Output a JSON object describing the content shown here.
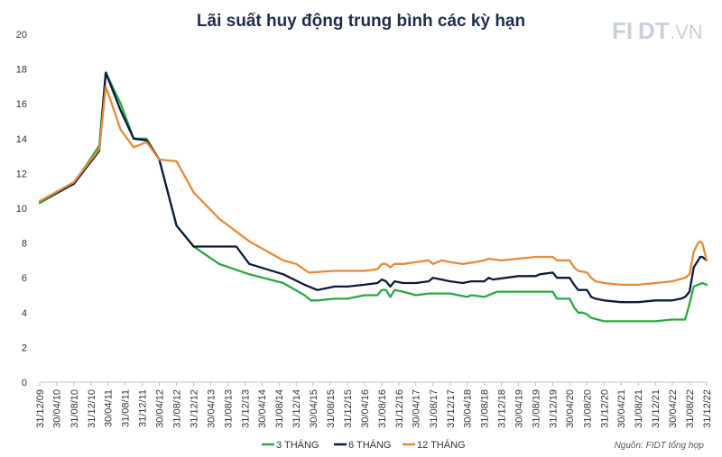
{
  "chart_data": {
    "type": "line",
    "title": "Lãi suất huy động trung bình các kỳ hạn",
    "xlabel": "",
    "ylabel": "",
    "ylim": [
      0,
      20
    ],
    "yticks": [
      0,
      2,
      4,
      6,
      8,
      10,
      12,
      14,
      16,
      18,
      20
    ],
    "xlim": [
      "31/12/09",
      "31/12/22"
    ],
    "xticks": [
      "31/12/09",
      "30/04/10",
      "31/08/10",
      "31/12/10",
      "30/04/11",
      "31/08/11",
      "31/12/11",
      "30/04/12",
      "31/08/12",
      "31/12/12",
      "30/04/13",
      "31/08/13",
      "31/12/13",
      "30/04/14",
      "31/08/14",
      "31/12/14",
      "30/04/15",
      "31/08/15",
      "31/12/15",
      "30/04/16",
      "31/08/16",
      "31/12/16",
      "30/04/17",
      "31/08/17",
      "31/12/17",
      "30/04/18",
      "31/08/18",
      "31/12/18",
      "30/04/19",
      "31/08/19",
      "31/12/19",
      "30/04/20",
      "31/08/20",
      "31/12/20",
      "30/04/21",
      "31/08/21",
      "31/12/21",
      "30/04/22",
      "31/08/22",
      "31/12/22"
    ],
    "grid": false,
    "legend_position": "bottom",
    "series": [
      {
        "name": "3 THÁNG",
        "color": "#2aa843",
        "points": [
          [
            "31/12/09",
            10.3
          ],
          [
            "31/08/10",
            11.4
          ],
          [
            "28/02/11",
            13.6
          ],
          [
            "15/04/11",
            17.8
          ],
          [
            "31/07/11",
            16.0
          ],
          [
            "31/10/11",
            14.0
          ],
          [
            "31/01/12",
            14.0
          ],
          [
            "30/04/12",
            12.8
          ],
          [
            "31/08/12",
            9.0
          ],
          [
            "31/12/12",
            7.8
          ],
          [
            "30/06/13",
            6.8
          ],
          [
            "31/01/14",
            6.2
          ],
          [
            "30/09/14",
            5.7
          ],
          [
            "28/02/15",
            5.0
          ],
          [
            "15/04/15",
            4.7
          ],
          [
            "31/05/15",
            4.7
          ],
          [
            "30/09/15",
            4.8
          ],
          [
            "31/12/15",
            4.8
          ],
          [
            "30/04/16",
            5.0
          ],
          [
            "31/07/16",
            5.0
          ],
          [
            "31/08/16",
            5.3
          ],
          [
            "30/09/16",
            5.3
          ],
          [
            "31/10/16",
            4.9
          ],
          [
            "30/11/16",
            5.3
          ],
          [
            "31/01/17",
            5.2
          ],
          [
            "30/04/17",
            5.0
          ],
          [
            "31/07/17",
            5.1
          ],
          [
            "30/09/17",
            5.1
          ],
          [
            "31/12/17",
            5.1
          ],
          [
            "30/04/18",
            4.9
          ],
          [
            "31/05/18",
            5.0
          ],
          [
            "31/08/18",
            4.9
          ],
          [
            "31/10/18",
            5.1
          ],
          [
            "30/11/18",
            5.2
          ],
          [
            "30/04/19",
            5.2
          ],
          [
            "30/06/19",
            5.2
          ],
          [
            "30/09/19",
            5.2
          ],
          [
            "31/12/19",
            5.2
          ],
          [
            "31/01/20",
            4.8
          ],
          [
            "30/04/20",
            4.8
          ],
          [
            "31/05/20",
            4.3
          ],
          [
            "30/06/20",
            4.0
          ],
          [
            "31/07/20",
            4.0
          ],
          [
            "31/08/20",
            3.9
          ],
          [
            "30/09/20",
            3.7
          ],
          [
            "31/12/20",
            3.5
          ],
          [
            "30/04/21",
            3.5
          ],
          [
            "31/08/21",
            3.5
          ],
          [
            "31/12/21",
            3.5
          ],
          [
            "30/04/22",
            3.6
          ],
          [
            "31/07/22",
            3.6
          ],
          [
            "31/08/22",
            4.5
          ],
          [
            "30/09/22",
            5.5
          ],
          [
            "31/10/22",
            5.6
          ],
          [
            "30/11/22",
            5.7
          ],
          [
            "31/12/22",
            5.6
          ]
        ]
      },
      {
        "name": "6 THÁNG",
        "color": "#0d1a3a",
        "points": [
          [
            "31/12/09",
            10.4
          ],
          [
            "31/08/10",
            11.4
          ],
          [
            "28/02/11",
            13.3
          ],
          [
            "15/04/11",
            17.8
          ],
          [
            "31/07/11",
            15.6
          ],
          [
            "31/10/11",
            14.0
          ],
          [
            "31/01/12",
            13.9
          ],
          [
            "30/04/12",
            12.8
          ],
          [
            "31/08/12",
            9.0
          ],
          [
            "31/12/12",
            7.8
          ],
          [
            "30/06/13",
            7.8
          ],
          [
            "31/10/13",
            7.8
          ],
          [
            "31/01/14",
            6.8
          ],
          [
            "30/09/14",
            6.2
          ],
          [
            "28/02/15",
            5.6
          ],
          [
            "30/04/15",
            5.4
          ],
          [
            "31/05/15",
            5.3
          ],
          [
            "30/09/15",
            5.5
          ],
          [
            "31/12/15",
            5.5
          ],
          [
            "30/04/16",
            5.6
          ],
          [
            "31/07/16",
            5.7
          ],
          [
            "31/08/16",
            5.9
          ],
          [
            "30/09/16",
            5.8
          ],
          [
            "31/10/16",
            5.5
          ],
          [
            "30/11/16",
            5.8
          ],
          [
            "31/01/17",
            5.7
          ],
          [
            "30/04/17",
            5.7
          ],
          [
            "31/07/17",
            5.8
          ],
          [
            "31/08/17",
            6.0
          ],
          [
            "31/10/17",
            5.9
          ],
          [
            "31/12/17",
            5.8
          ],
          [
            "31/03/18",
            5.7
          ],
          [
            "31/05/18",
            5.8
          ],
          [
            "31/08/18",
            5.8
          ],
          [
            "30/09/18",
            6.0
          ],
          [
            "31/10/18",
            5.9
          ],
          [
            "31/01/19",
            6.0
          ],
          [
            "30/04/19",
            6.1
          ],
          [
            "31/08/19",
            6.1
          ],
          [
            "30/09/19",
            6.2
          ],
          [
            "31/12/19",
            6.3
          ],
          [
            "31/01/20",
            6.0
          ],
          [
            "30/04/20",
            6.0
          ],
          [
            "31/05/20",
            5.6
          ],
          [
            "30/06/20",
            5.3
          ],
          [
            "31/08/20",
            5.3
          ],
          [
            "30/09/20",
            4.9
          ],
          [
            "31/10/20",
            4.8
          ],
          [
            "31/12/20",
            4.7
          ],
          [
            "30/04/21",
            4.6
          ],
          [
            "31/08/21",
            4.6
          ],
          [
            "31/12/21",
            4.7
          ],
          [
            "30/04/22",
            4.7
          ],
          [
            "30/06/22",
            4.8
          ],
          [
            "31/07/22",
            4.9
          ],
          [
            "31/08/22",
            5.2
          ],
          [
            "30/09/22",
            6.6
          ],
          [
            "31/10/22",
            7.0
          ],
          [
            "15/11/22",
            7.2
          ],
          [
            "30/11/22",
            7.2
          ],
          [
            "31/12/22",
            7.0
          ]
        ]
      },
      {
        "name": "12 THÁNG",
        "color": "#e8893a",
        "points": [
          [
            "31/12/09",
            10.4
          ],
          [
            "31/08/10",
            11.5
          ],
          [
            "28/02/11",
            13.4
          ],
          [
            "15/04/11",
            17.0
          ],
          [
            "31/07/11",
            14.5
          ],
          [
            "31/10/11",
            13.5
          ],
          [
            "31/01/12",
            13.8
          ],
          [
            "30/04/12",
            12.8
          ],
          [
            "31/08/12",
            12.7
          ],
          [
            "31/12/12",
            10.9
          ],
          [
            "30/06/13",
            9.4
          ],
          [
            "31/01/14",
            8.1
          ],
          [
            "30/09/14",
            7.0
          ],
          [
            "31/12/14",
            6.8
          ],
          [
            "31/03/15",
            6.3
          ],
          [
            "30/09/15",
            6.4
          ],
          [
            "31/12/15",
            6.4
          ],
          [
            "30/04/16",
            6.4
          ],
          [
            "31/07/16",
            6.5
          ],
          [
            "31/08/16",
            6.8
          ],
          [
            "30/09/16",
            6.8
          ],
          [
            "31/10/16",
            6.6
          ],
          [
            "30/11/16",
            6.8
          ],
          [
            "31/01/17",
            6.8
          ],
          [
            "30/04/17",
            6.9
          ],
          [
            "31/07/17",
            7.0
          ],
          [
            "31/08/17",
            6.8
          ],
          [
            "31/10/17",
            7.0
          ],
          [
            "31/12/17",
            6.9
          ],
          [
            "31/03/18",
            6.8
          ],
          [
            "30/06/18",
            6.9
          ],
          [
            "31/08/18",
            7.0
          ],
          [
            "30/09/18",
            7.1
          ],
          [
            "31/12/18",
            7.0
          ],
          [
            "30/04/19",
            7.1
          ],
          [
            "31/08/19",
            7.2
          ],
          [
            "31/12/19",
            7.2
          ],
          [
            "31/01/20",
            7.0
          ],
          [
            "30/04/20",
            7.0
          ],
          [
            "31/05/20",
            6.6
          ],
          [
            "30/06/20",
            6.4
          ],
          [
            "31/08/20",
            6.3
          ],
          [
            "30/09/20",
            6.0
          ],
          [
            "31/10/20",
            5.8
          ],
          [
            "31/12/20",
            5.7
          ],
          [
            "30/04/21",
            5.6
          ],
          [
            "31/08/21",
            5.6
          ],
          [
            "31/12/21",
            5.7
          ],
          [
            "30/04/22",
            5.8
          ],
          [
            "31/07/22",
            6.0
          ],
          [
            "31/08/22",
            6.2
          ],
          [
            "30/09/22",
            7.5
          ],
          [
            "31/10/22",
            8.0
          ],
          [
            "15/11/22",
            8.1
          ],
          [
            "30/11/22",
            8.0
          ],
          [
            "31/12/22",
            7.0
          ]
        ]
      }
    ],
    "source": "Nguồn: FIDT tổng hợp",
    "logo": "FIDT.VN"
  }
}
